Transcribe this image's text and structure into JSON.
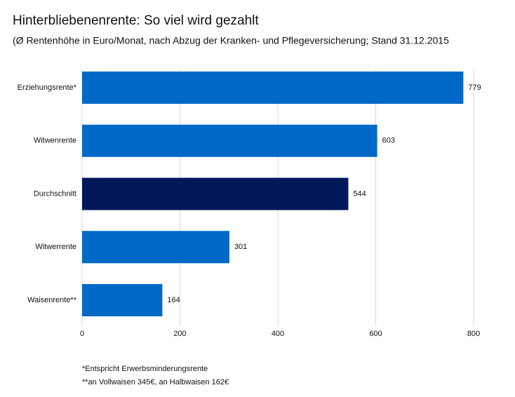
{
  "chart_data": {
    "type": "bar",
    "orientation": "horizontal",
    "title": "Hinterbliebenenrente: So viel wird gezahlt",
    "subtitle": "(Ø Rentenhöhe in Euro/Monat, nach Abzug der Kranken- und Pflegeversicherung; Stand 31.12.2015",
    "categories": [
      "Erziehungsrente*",
      "Witwenrente",
      "Durchschnitt",
      "Witwerrente",
      "Waisenrente**"
    ],
    "values": [
      779,
      603,
      544,
      301,
      164
    ],
    "colors": [
      "#0069c8",
      "#0069c8",
      "#00185a",
      "#0069c8",
      "#0069c8"
    ],
    "xlim": [
      0,
      800
    ],
    "xticks": [
      0,
      200,
      400,
      600,
      800
    ],
    "grid": true,
    "footnotes": [
      "*Entspricht Erwerbsminderungsrente",
      "**an Vollwaisen 345€, an Halbwaisen 162€"
    ]
  }
}
